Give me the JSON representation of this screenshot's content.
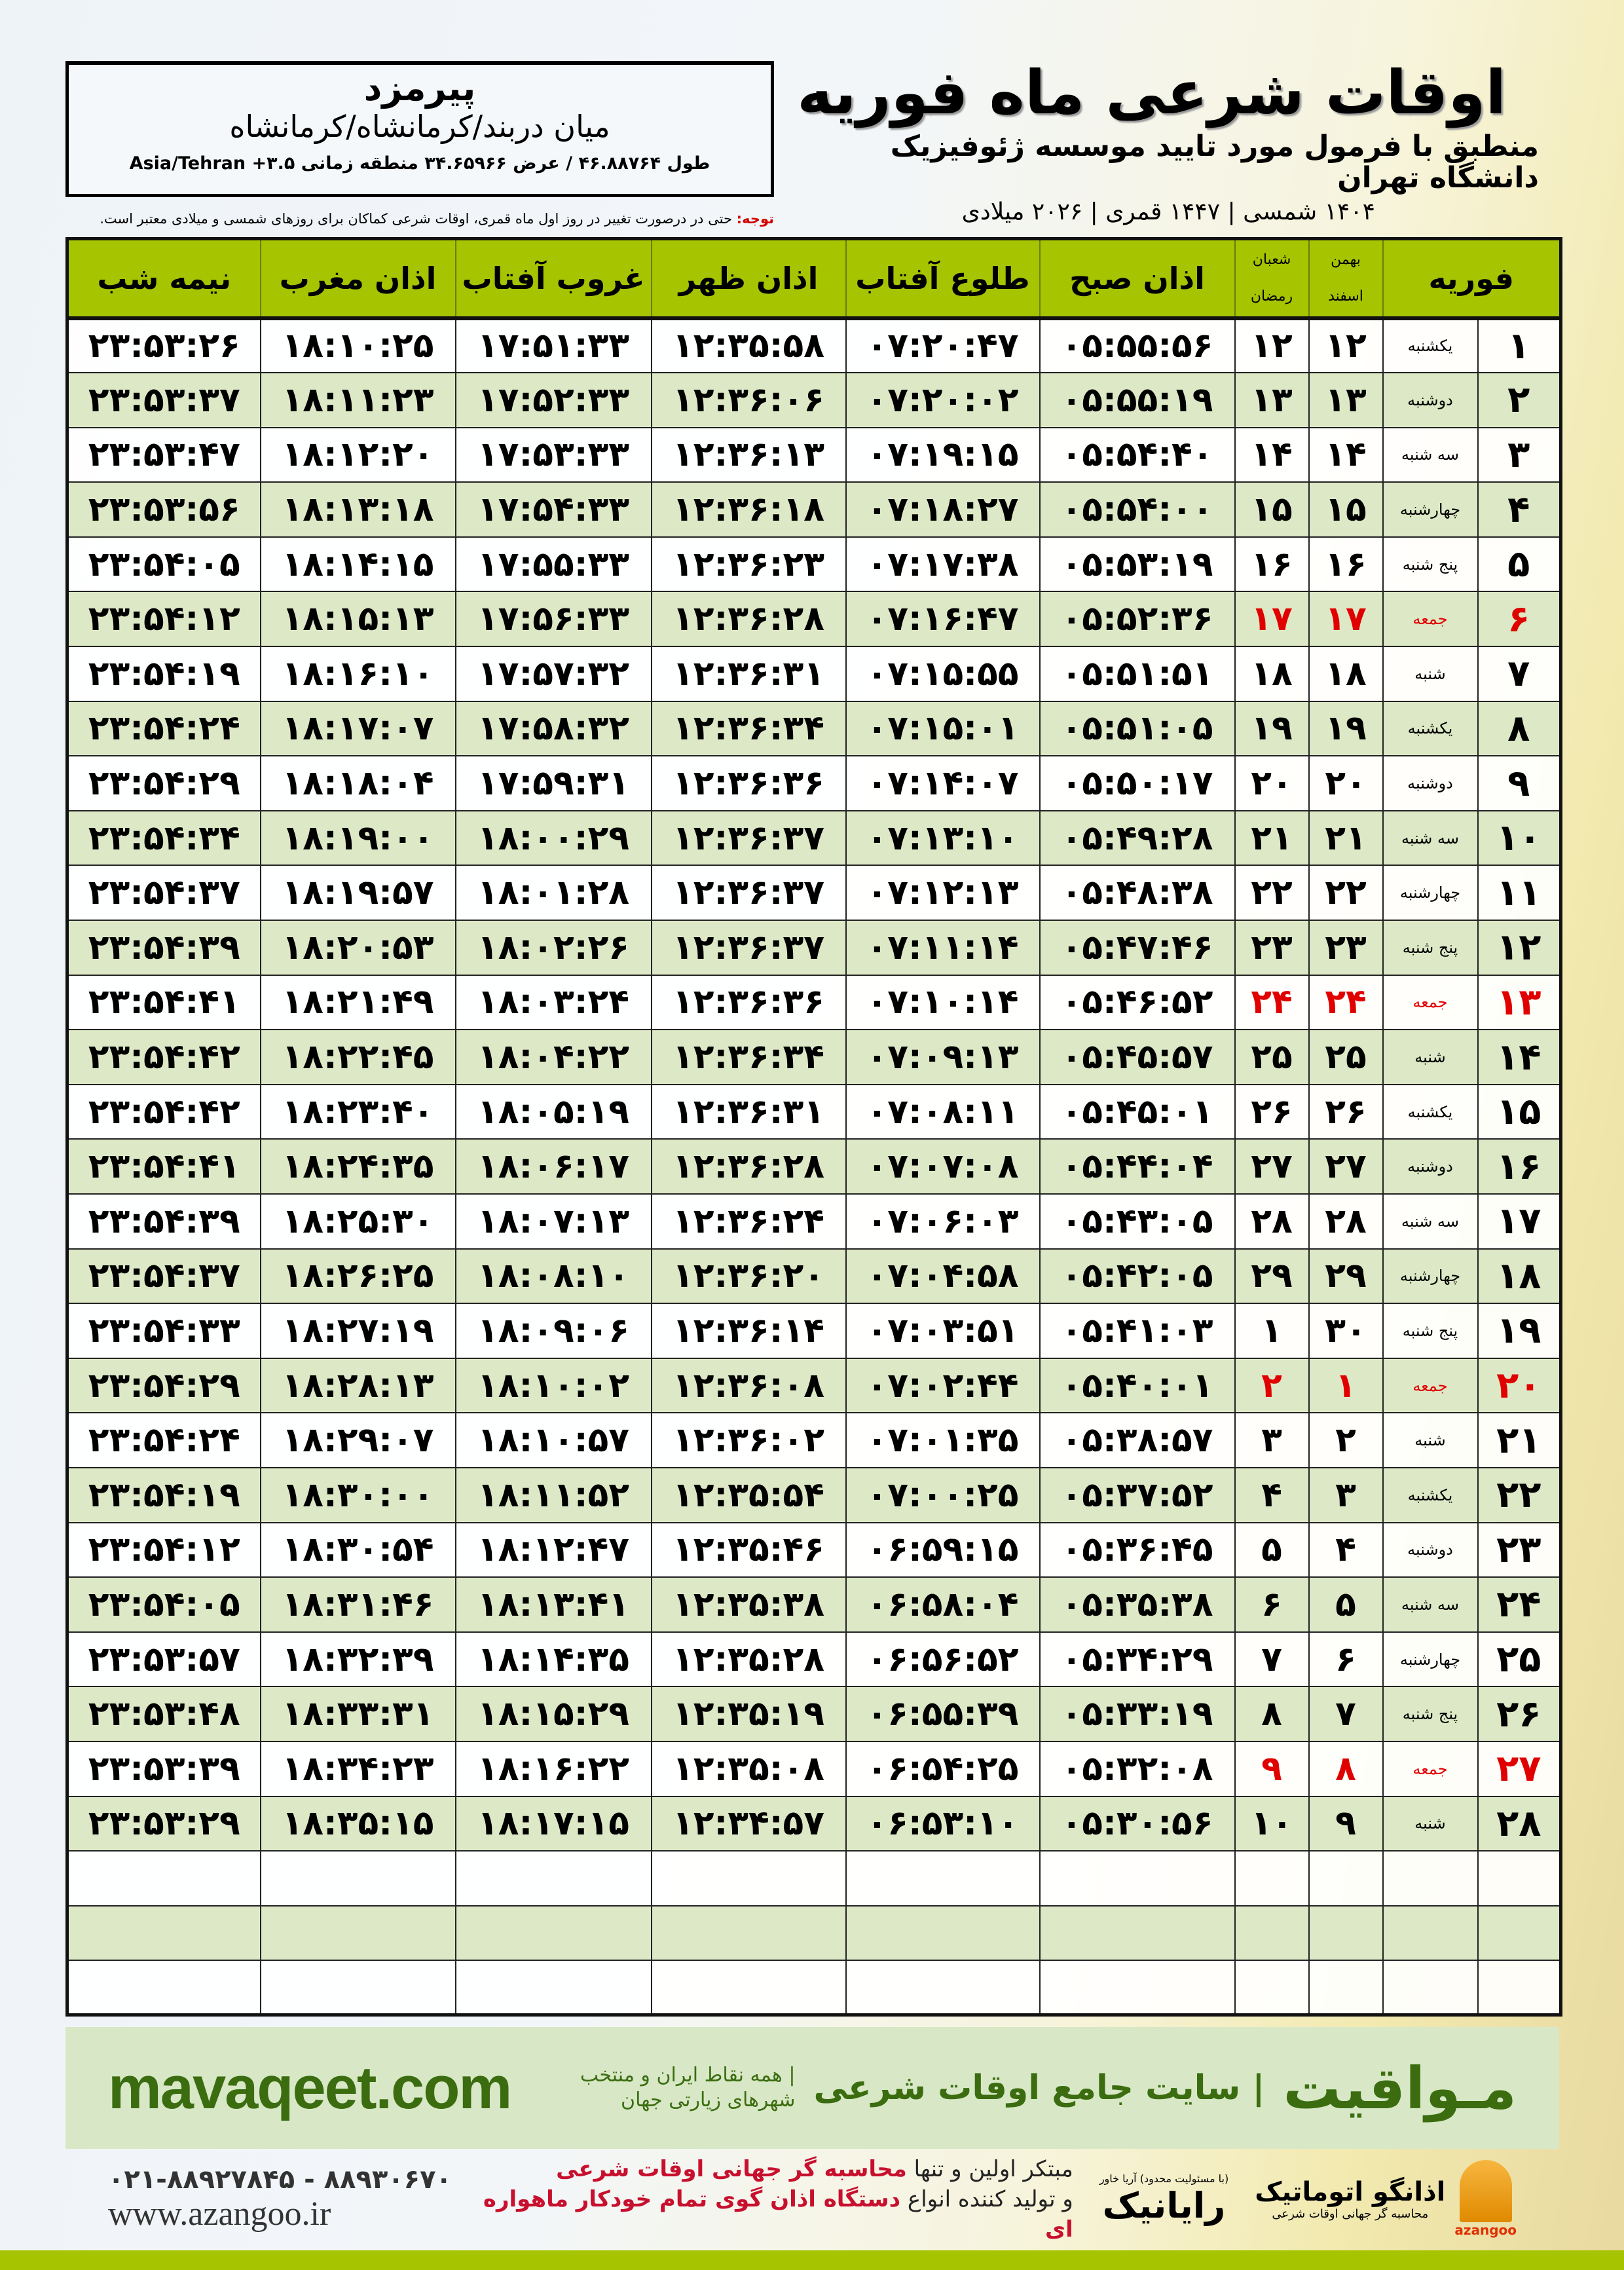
{
  "header": {
    "title": "اوقات شرعی ماه فوریه",
    "subtitle": "منطبق با فرمول مورد تایید موسسه ژئوفیزیک دانشگاه تهران",
    "dates": "۱۴۰۴ شمسی | ۱۴۴۷ قمری | ۲۰۲۶ میلادی"
  },
  "location": {
    "name": "پیرمزد",
    "path": "میان دربند/کرمانشاه/کرمانشاه",
    "coords": "طول ۴۶.۸۸۷۶۴ / عرض ۳۴.۶۵۹۶۶ منطقه زمانی ۳.۵+ Asia/Tehran"
  },
  "note": {
    "label": "توجه:",
    "text": " حتی در درصورت تغییر در روز اول ماه قمری، اوقات شرعی کماکان برای روزهای شمسی و میلادی معتبر است."
  },
  "columns": {
    "month": "فوریه",
    "bahman": "بهمن",
    "esfand": "اسفند",
    "shaban": "شعبان",
    "ramadan": "رمضان",
    "sobh": "اذان صبح",
    "tulu": "طلوع آفتاب",
    "zuhr": "اذان ظهر",
    "ghurub": "غروب آفتاب",
    "maghrib": "اذان مغرب",
    "nime": "نیمه شب"
  },
  "colors": {
    "header_green": "#a6c400",
    "alt_row": "#dde9c6",
    "holiday": "#e00000",
    "brand": "#3b6d10"
  },
  "rows": [
    [
      "۱",
      "یکشنبه",
      "۱۲",
      "۱۲",
      "۰۵:۵۵:۵۶",
      "۰۷:۲۰:۴۷",
      "۱۲:۳۵:۵۸",
      "۱۷:۵۱:۳۳",
      "۱۸:۱۰:۲۵",
      "۲۳:۵۳:۲۶"
    ],
    [
      "۲",
      "دوشنبه",
      "۱۳",
      "۱۳",
      "۰۵:۵۵:۱۹",
      "۰۷:۲۰:۰۲",
      "۱۲:۳۶:۰۶",
      "۱۷:۵۲:۳۳",
      "۱۸:۱۱:۲۳",
      "۲۳:۵۳:۳۷"
    ],
    [
      "۳",
      "سه شنبه",
      "۱۴",
      "۱۴",
      "۰۵:۵۴:۴۰",
      "۰۷:۱۹:۱۵",
      "۱۲:۳۶:۱۳",
      "۱۷:۵۳:۳۳",
      "۱۸:۱۲:۲۰",
      "۲۳:۵۳:۴۷"
    ],
    [
      "۴",
      "چهارشنبه",
      "۱۵",
      "۱۵",
      "۰۵:۵۴:۰۰",
      "۰۷:۱۸:۲۷",
      "۱۲:۳۶:۱۸",
      "۱۷:۵۴:۳۳",
      "۱۸:۱۳:۱۸",
      "۲۳:۵۳:۵۶"
    ],
    [
      "۵",
      "پنج شنبه",
      "۱۶",
      "۱۶",
      "۰۵:۵۳:۱۹",
      "۰۷:۱۷:۳۸",
      "۱۲:۳۶:۲۳",
      "۱۷:۵۵:۳۳",
      "۱۸:۱۴:۱۵",
      "۲۳:۵۴:۰۵"
    ],
    [
      "۶",
      "جمعه",
      "۱۷",
      "۱۷",
      "۰۵:۵۲:۳۶",
      "۰۷:۱۶:۴۷",
      "۱۲:۳۶:۲۸",
      "۱۷:۵۶:۳۳",
      "۱۸:۱۵:۱۳",
      "۲۳:۵۴:۱۲"
    ],
    [
      "۷",
      "شنبه",
      "۱۸",
      "۱۸",
      "۰۵:۵۱:۵۱",
      "۰۷:۱۵:۵۵",
      "۱۲:۳۶:۳۱",
      "۱۷:۵۷:۳۲",
      "۱۸:۱۶:۱۰",
      "۲۳:۵۴:۱۹"
    ],
    [
      "۸",
      "یکشنبه",
      "۱۹",
      "۱۹",
      "۰۵:۵۱:۰۵",
      "۰۷:۱۵:۰۱",
      "۱۲:۳۶:۳۴",
      "۱۷:۵۸:۳۲",
      "۱۸:۱۷:۰۷",
      "۲۳:۵۴:۲۴"
    ],
    [
      "۹",
      "دوشنبه",
      "۲۰",
      "۲۰",
      "۰۵:۵۰:۱۷",
      "۰۷:۱۴:۰۷",
      "۱۲:۳۶:۳۶",
      "۱۷:۵۹:۳۱",
      "۱۸:۱۸:۰۴",
      "۲۳:۵۴:۲۹"
    ],
    [
      "۱۰",
      "سه شنبه",
      "۲۱",
      "۲۱",
      "۰۵:۴۹:۲۸",
      "۰۷:۱۳:۱۰",
      "۱۲:۳۶:۳۷",
      "۱۸:۰۰:۲۹",
      "۱۸:۱۹:۰۰",
      "۲۳:۵۴:۳۴"
    ],
    [
      "۱۱",
      "چهارشنبه",
      "۲۲",
      "۲۲",
      "۰۵:۴۸:۳۸",
      "۰۷:۱۲:۱۳",
      "۱۲:۳۶:۳۷",
      "۱۸:۰۱:۲۸",
      "۱۸:۱۹:۵۷",
      "۲۳:۵۴:۳۷"
    ],
    [
      "۱۲",
      "پنج شنبه",
      "۲۳",
      "۲۳",
      "۰۵:۴۷:۴۶",
      "۰۷:۱۱:۱۴",
      "۱۲:۳۶:۳۷",
      "۱۸:۰۲:۲۶",
      "۱۸:۲۰:۵۳",
      "۲۳:۵۴:۳۹"
    ],
    [
      "۱۳",
      "جمعه",
      "۲۴",
      "۲۴",
      "۰۵:۴۶:۵۲",
      "۰۷:۱۰:۱۴",
      "۱۲:۳۶:۳۶",
      "۱۸:۰۳:۲۴",
      "۱۸:۲۱:۴۹",
      "۲۳:۵۴:۴۱"
    ],
    [
      "۱۴",
      "شنبه",
      "۲۵",
      "۲۵",
      "۰۵:۴۵:۵۷",
      "۰۷:۰۹:۱۳",
      "۱۲:۳۶:۳۴",
      "۱۸:۰۴:۲۲",
      "۱۸:۲۲:۴۵",
      "۲۳:۵۴:۴۲"
    ],
    [
      "۱۵",
      "یکشنبه",
      "۲۶",
      "۲۶",
      "۰۵:۴۵:۰۱",
      "۰۷:۰۸:۱۱",
      "۱۲:۳۶:۳۱",
      "۱۸:۰۵:۱۹",
      "۱۸:۲۳:۴۰",
      "۲۳:۵۴:۴۲"
    ],
    [
      "۱۶",
      "دوشنبه",
      "۲۷",
      "۲۷",
      "۰۵:۴۴:۰۴",
      "۰۷:۰۷:۰۸",
      "۱۲:۳۶:۲۸",
      "۱۸:۰۶:۱۷",
      "۱۸:۲۴:۳۵",
      "۲۳:۵۴:۴۱"
    ],
    [
      "۱۷",
      "سه شنبه",
      "۲۸",
      "۲۸",
      "۰۵:۴۳:۰۵",
      "۰۷:۰۶:۰۳",
      "۱۲:۳۶:۲۴",
      "۱۸:۰۷:۱۳",
      "۱۸:۲۵:۳۰",
      "۲۳:۵۴:۳۹"
    ],
    [
      "۱۸",
      "چهارشنبه",
      "۲۹",
      "۲۹",
      "۰۵:۴۲:۰۵",
      "۰۷:۰۴:۵۸",
      "۱۲:۳۶:۲۰",
      "۱۸:۰۸:۱۰",
      "۱۸:۲۶:۲۵",
      "۲۳:۵۴:۳۷"
    ],
    [
      "۱۹",
      "پنج شنبه",
      "۳۰",
      "۱",
      "۰۵:۴۱:۰۳",
      "۰۷:۰۳:۵۱",
      "۱۲:۳۶:۱۴",
      "۱۸:۰۹:۰۶",
      "۱۸:۲۷:۱۹",
      "۲۳:۵۴:۳۳"
    ],
    [
      "۲۰",
      "جمعه",
      "۱",
      "۲",
      "۰۵:۴۰:۰۱",
      "۰۷:۰۲:۴۴",
      "۱۲:۳۶:۰۸",
      "۱۸:۱۰:۰۲",
      "۱۸:۲۸:۱۳",
      "۲۳:۵۴:۲۹"
    ],
    [
      "۲۱",
      "شنبه",
      "۲",
      "۳",
      "۰۵:۳۸:۵۷",
      "۰۷:۰۱:۳۵",
      "۱۲:۳۶:۰۲",
      "۱۸:۱۰:۵۷",
      "۱۸:۲۹:۰۷",
      "۲۳:۵۴:۲۴"
    ],
    [
      "۲۲",
      "یکشنبه",
      "۳",
      "۴",
      "۰۵:۳۷:۵۲",
      "۰۷:۰۰:۲۵",
      "۱۲:۳۵:۵۴",
      "۱۸:۱۱:۵۲",
      "۱۸:۳۰:۰۰",
      "۲۳:۵۴:۱۹"
    ],
    [
      "۲۳",
      "دوشنبه",
      "۴",
      "۵",
      "۰۵:۳۶:۴۵",
      "۰۶:۵۹:۱۵",
      "۱۲:۳۵:۴۶",
      "۱۸:۱۲:۴۷",
      "۱۸:۳۰:۵۴",
      "۲۳:۵۴:۱۲"
    ],
    [
      "۲۴",
      "سه شنبه",
      "۵",
      "۶",
      "۰۵:۳۵:۳۸",
      "۰۶:۵۸:۰۴",
      "۱۲:۳۵:۳۸",
      "۱۸:۱۳:۴۱",
      "۱۸:۳۱:۴۶",
      "۲۳:۵۴:۰۵"
    ],
    [
      "۲۵",
      "چهارشنبه",
      "۶",
      "۷",
      "۰۵:۳۴:۲۹",
      "۰۶:۵۶:۵۲",
      "۱۲:۳۵:۲۸",
      "۱۸:۱۴:۳۵",
      "۱۸:۳۲:۳۹",
      "۲۳:۵۳:۵۷"
    ],
    [
      "۲۶",
      "پنج شنبه",
      "۷",
      "۸",
      "۰۵:۳۳:۱۹",
      "۰۶:۵۵:۳۹",
      "۱۲:۳۵:۱۹",
      "۱۸:۱۵:۲۹",
      "۱۸:۳۳:۳۱",
      "۲۳:۵۳:۴۸"
    ],
    [
      "۲۷",
      "جمعه",
      "۸",
      "۹",
      "۰۵:۳۲:۰۸",
      "۰۶:۵۴:۲۵",
      "۱۲:۳۵:۰۸",
      "۱۸:۱۶:۲۲",
      "۱۸:۳۴:۲۳",
      "۲۳:۵۳:۳۹"
    ],
    [
      "۲۸",
      "شنبه",
      "۹",
      "۱۰",
      "۰۵:۳۰:۵۶",
      "۰۶:۵۳:۱۰",
      "۱۲:۳۴:۵۷",
      "۱۸:۱۷:۱۵",
      "۱۸:۳۵:۱۵",
      "۲۳:۵۳:۲۹"
    ]
  ],
  "holiday_weekday": "جمعه",
  "footer": {
    "site": "mavaqeet.com",
    "brand": "مـواقیت",
    "brand_sub": "| سایت جامع اوقات شرعی",
    "brand_sub2": "| همه نقاط ایران و منتخب شهرهای زیارتی جهان",
    "phone": "۰۲۱-۸۸۹۲۷۸۴۵ - ۸۸۹۳۰۶۷۰",
    "www": "www.azangoo.ir",
    "promo1a": "مبتکر اولین و تنها ",
    "promo1b": "محاسبه گر جهانی اوقات شرعی",
    "promo2a": "و تولید کننده انواع ",
    "promo2b": "دستگاه اذان گوی تمام خودکار ماهواره ای",
    "rayanik": "رایانیک",
    "rayanik_small": "(با مسئولیت محدود) آریا خاور",
    "azangoo_name": "اذانگو اتوماتیک",
    "azangoo_sub": "محاسبه گر جهانی اوقات شرعی",
    "azangoo_label": "azangoo"
  }
}
